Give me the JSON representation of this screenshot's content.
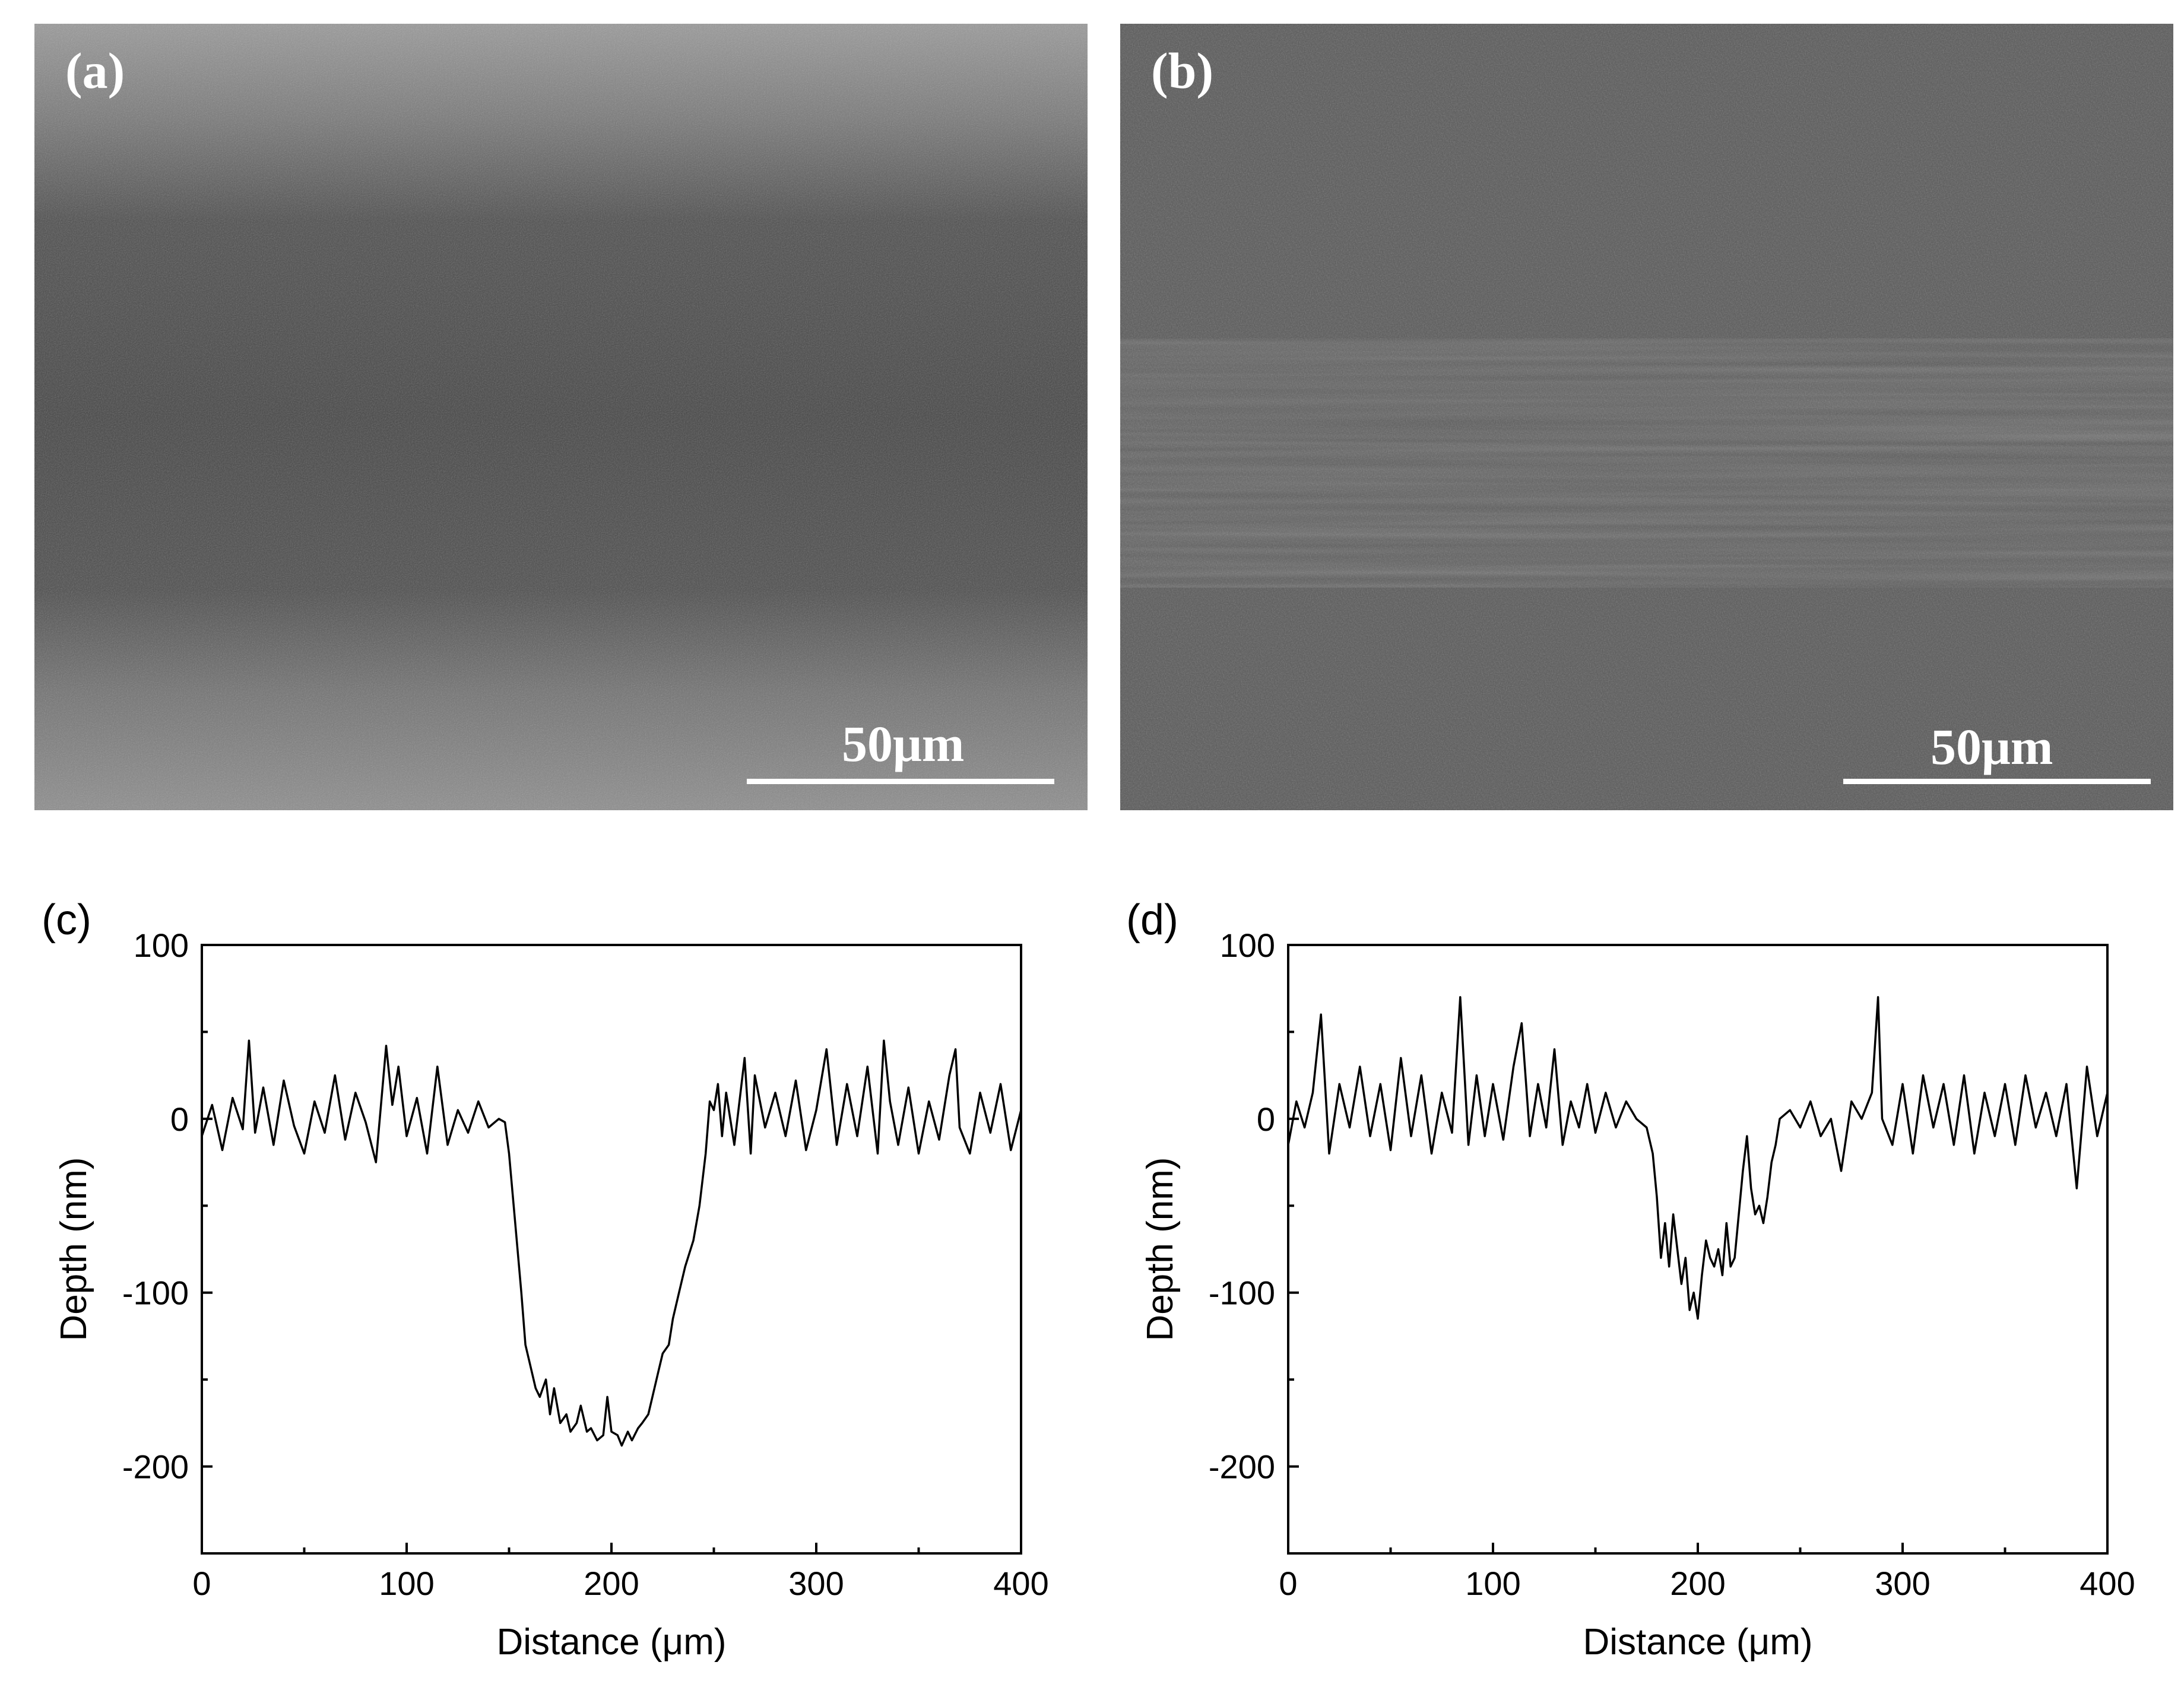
{
  "panels": {
    "a": {
      "label": "(a)",
      "scale_label": "50μm"
    },
    "b": {
      "label": "(b)",
      "scale_label": "50μm"
    },
    "c": {
      "label": "(c)"
    },
    "d": {
      "label": "(d)"
    }
  },
  "chart_data": [
    {
      "panel": "c",
      "type": "line",
      "xlabel": "Distance (μm)",
      "ylabel": "Depth (nm)",
      "xlim": [
        0,
        400
      ],
      "ylim": [
        -250,
        100
      ],
      "xticks": [
        0,
        100,
        200,
        300,
        400
      ],
      "yticks": [
        100,
        0,
        -100,
        -200
      ],
      "xtick_labels": [
        "0",
        "100",
        "200",
        "300",
        "400"
      ],
      "ytick_labels": [
        "100",
        "0",
        "-100",
        "-200"
      ],
      "grid": false,
      "series": [
        {
          "x": [
            0,
            5,
            10,
            15,
            20,
            23,
            26,
            30,
            35,
            40,
            45,
            50,
            55,
            60,
            65,
            70,
            75,
            80,
            85,
            90,
            93,
            96,
            100,
            105,
            110,
            115,
            120,
            125,
            130,
            135,
            140,
            145,
            148,
            150,
            153,
            156,
            158,
            160,
            163,
            165,
            168,
            170,
            172,
            175,
            178,
            180,
            183,
            185,
            188,
            190,
            193,
            196,
            198,
            200,
            203,
            205,
            208,
            210,
            213,
            215,
            218,
            220,
            223,
            225,
            228,
            230,
            233,
            236,
            240,
            243,
            246,
            248,
            250,
            252,
            254,
            256,
            260,
            265,
            268,
            270,
            275,
            280,
            285,
            290,
            295,
            300,
            305,
            310,
            315,
            320,
            325,
            330,
            333,
            336,
            340,
            345,
            350,
            355,
            360,
            365,
            368,
            370,
            375,
            380,
            385,
            390,
            395,
            400
          ],
          "y": [
            -10,
            8,
            -18,
            12,
            -6,
            45,
            -8,
            18,
            -15,
            22,
            -4,
            -20,
            10,
            -8,
            25,
            -12,
            15,
            -2,
            -25,
            42,
            8,
            30,
            -10,
            12,
            -20,
            30,
            -15,
            5,
            -8,
            10,
            -5,
            0,
            -2,
            -20,
            -60,
            -100,
            -130,
            -140,
            -155,
            -160,
            -150,
            -170,
            -155,
            -175,
            -170,
            -180,
            -175,
            -165,
            -180,
            -178,
            -185,
            -182,
            -160,
            -180,
            -182,
            -188,
            -180,
            -185,
            -178,
            -175,
            -170,
            -160,
            -145,
            -135,
            -130,
            -115,
            -100,
            -85,
            -70,
            -50,
            -20,
            10,
            5,
            20,
            -10,
            15,
            -15,
            35,
            -20,
            25,
            -5,
            15,
            -10,
            22,
            -18,
            5,
            40,
            -15,
            20,
            -10,
            30,
            -20,
            45,
            10,
            -15,
            18,
            -20,
            10,
            -12,
            25,
            40,
            -5,
            -20,
            15,
            -8,
            20,
            -18,
            5
          ]
        }
      ]
    },
    {
      "panel": "d",
      "type": "line",
      "xlabel": "Distance (μm)",
      "ylabel": "Depth (nm)",
      "xlim": [
        0,
        400
      ],
      "ylim": [
        -250,
        100
      ],
      "xticks": [
        0,
        100,
        200,
        300,
        400
      ],
      "yticks": [
        100,
        0,
        -100,
        -200
      ],
      "xtick_labels": [
        "0",
        "100",
        "200",
        "300",
        "400"
      ],
      "ytick_labels": [
        "100",
        "0",
        "-100",
        "-200"
      ],
      "grid": false,
      "series": [
        {
          "x": [
            0,
            4,
            8,
            12,
            16,
            20,
            25,
            30,
            35,
            40,
            45,
            50,
            55,
            60,
            65,
            70,
            75,
            80,
            84,
            88,
            92,
            96,
            100,
            105,
            110,
            114,
            118,
            122,
            126,
            130,
            134,
            138,
            142,
            146,
            150,
            155,
            160,
            165,
            170,
            175,
            178,
            180,
            182,
            184,
            186,
            188,
            190,
            192,
            194,
            196,
            198,
            200,
            202,
            204,
            206,
            208,
            210,
            212,
            214,
            216,
            218,
            220,
            222,
            224,
            226,
            228,
            230,
            232,
            234,
            236,
            238,
            240,
            245,
            250,
            255,
            260,
            265,
            270,
            275,
            280,
            285,
            288,
            290,
            295,
            300,
            305,
            310,
            315,
            320,
            325,
            330,
            335,
            340,
            345,
            350,
            355,
            360,
            365,
            370,
            375,
            380,
            385,
            390,
            395,
            400
          ],
          "y": [
            -15,
            10,
            -5,
            15,
            60,
            -20,
            20,
            -5,
            30,
            -10,
            20,
            -18,
            35,
            -10,
            25,
            -20,
            15,
            -8,
            70,
            -15,
            25,
            -10,
            20,
            -12,
            30,
            55,
            -10,
            20,
            -5,
            40,
            -15,
            10,
            -5,
            20,
            -8,
            15,
            -5,
            10,
            0,
            -5,
            -20,
            -45,
            -80,
            -60,
            -85,
            -55,
            -75,
            -95,
            -80,
            -110,
            -100,
            -115,
            -90,
            -70,
            -80,
            -85,
            -75,
            -90,
            -60,
            -85,
            -80,
            -55,
            -30,
            -10,
            -40,
            -55,
            -50,
            -60,
            -45,
            -25,
            -15,
            0,
            5,
            -5,
            10,
            -10,
            0,
            -30,
            10,
            0,
            15,
            70,
            0,
            -15,
            20,
            -20,
            25,
            -5,
            20,
            -15,
            25,
            -20,
            15,
            -10,
            20,
            -15,
            25,
            -5,
            15,
            -10,
            20,
            -40,
            30,
            -10,
            15
          ]
        }
      ]
    }
  ]
}
